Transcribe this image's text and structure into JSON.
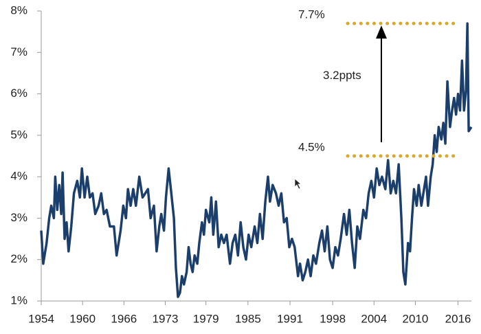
{
  "chart_data": {
    "type": "line",
    "x": [
      1954.0,
      1954.3,
      1954.8,
      1955.2,
      1955.5,
      1955.9,
      1956.1,
      1956.4,
      1956.7,
      1957.0,
      1957.2,
      1957.5,
      1957.8,
      1958.1,
      1958.5,
      1958.9,
      1959.4,
      1959.8,
      1960.1,
      1960.5,
      1960.9,
      1961.3,
      1961.7,
      1962.1,
      1962.6,
      1963.0,
      1963.4,
      1963.8,
      1964.3,
      1964.9,
      1965.3,
      1965.9,
      1966.3,
      1966.7,
      1967.0,
      1967.4,
      1967.8,
      1968.2,
      1968.7,
      1969.2,
      1969.6,
      1970.0,
      1970.4,
      1970.9,
      1971.3,
      1971.7,
      1972.0,
      1972.4,
      1972.7,
      1973.1,
      1973.5,
      1973.9,
      1974.2,
      1974.5,
      1974.8,
      1975.1,
      1975.4,
      1975.8,
      1976.1,
      1976.4,
      1976.7,
      1977.0,
      1977.4,
      1977.7,
      1978.1,
      1978.4,
      1978.7,
      1979.2,
      1979.5,
      1979.8,
      1980.2,
      1980.6,
      1981.0,
      1981.4,
      1981.8,
      1982.3,
      1982.7,
      1983.1,
      1983.5,
      1983.9,
      1984.3,
      1984.7,
      1985.1,
      1985.5,
      1986.0,
      1986.4,
      1986.8,
      1987.2,
      1987.6,
      1988.0,
      1988.3,
      1988.7,
      1989.2,
      1989.6,
      1990.0,
      1990.4,
      1990.8,
      1991.2,
      1991.6,
      1992.0,
      1992.5,
      1992.8,
      1993.2,
      1993.6,
      1994.0,
      1994.4,
      1994.8,
      1995.2,
      1995.7,
      1996.1,
      1996.5,
      1996.9,
      1997.3,
      1997.7,
      1998.1,
      1998.5,
      1998.9,
      1999.4,
      1999.8,
      2000.2,
      2000.6,
      2001.0,
      2001.4,
      2001.8,
      2002.3,
      2002.7,
      2003.1,
      2003.5,
      2003.9,
      2004.3,
      2004.7,
      2005.1,
      2005.6,
      2006.0,
      2006.4,
      2006.8,
      2007.2,
      2007.6,
      2008.0,
      2008.3,
      2008.6,
      2009.0,
      2009.3,
      2009.6,
      2009.9,
      2010.3,
      2010.6,
      2011.0,
      2011.4,
      2011.7,
      2012.0,
      2012.4,
      2012.7,
      2013.0,
      2013.3,
      2013.6,
      2014.0,
      2014.3,
      2014.6,
      2014.9,
      2015.3,
      2015.6,
      2015.9,
      2016.2,
      2016.5,
      2016.8,
      2017.1,
      2017.4,
      2017.7,
      2017.9,
      2018.1,
      2018.5
    ],
    "series": [
      {
        "color": "#1b3f6a",
        "values": [
          2.7,
          1.9,
          2.4,
          3.0,
          3.3,
          3.0,
          4.0,
          3.2,
          3.8,
          3.1,
          4.1,
          2.5,
          2.9,
          2.2,
          2.8,
          3.6,
          3.9,
          3.5,
          4.2,
          3.5,
          4.0,
          3.5,
          3.6,
          3.1,
          3.3,
          3.6,
          3.1,
          3.2,
          2.8,
          2.8,
          2.1,
          2.7,
          3.3,
          3.0,
          3.7,
          3.3,
          3.7,
          3.3,
          4.0,
          3.5,
          3.6,
          3.7,
          3.0,
          3.3,
          2.2,
          2.8,
          3.1,
          2.7,
          3.5,
          4.2,
          3.6,
          3.0,
          1.8,
          1.1,
          1.2,
          1.6,
          1.4,
          1.7,
          2.3,
          1.9,
          1.7,
          2.1,
          1.9,
          2.4,
          2.9,
          2.6,
          3.2,
          2.9,
          3.5,
          2.6,
          3.4,
          2.3,
          2.6,
          2.4,
          2.6,
          1.9,
          2.4,
          2.6,
          2.1,
          2.9,
          2.3,
          2.0,
          2.6,
          2.3,
          2.8,
          2.4,
          3.1,
          2.5,
          3.4,
          4.0,
          3.4,
          3.8,
          3.6,
          3.3,
          3.6,
          2.9,
          3.0,
          2.3,
          2.5,
          2.3,
          1.6,
          1.9,
          1.5,
          1.7,
          2.0,
          1.6,
          2.1,
          1.9,
          2.4,
          2.7,
          2.2,
          2.8,
          2.0,
          1.8,
          2.3,
          2.1,
          2.5,
          3.1,
          2.6,
          3.2,
          2.4,
          1.8,
          2.8,
          2.5,
          3.2,
          3.0,
          3.6,
          3.9,
          3.5,
          4.2,
          3.8,
          4.0,
          3.7,
          4.4,
          3.6,
          3.9,
          3.6,
          4.3,
          3.0,
          1.7,
          1.4,
          2.4,
          2.2,
          3.0,
          3.7,
          3.3,
          3.8,
          3.3,
          3.7,
          4.0,
          3.3,
          4.0,
          4.3,
          5.0,
          4.6,
          5.2,
          4.9,
          5.3,
          4.8,
          6.3,
          5.2,
          5.6,
          5.9,
          5.5,
          6.0,
          5.6,
          6.8,
          5.6,
          6.1,
          7.7,
          5.1,
          5.2
        ]
      }
    ],
    "xlim": [
      1954,
      2018.5
    ],
    "xticks": [
      1954,
      {
        "value": 1960.2,
        "label": "1960"
      },
      {
        "value": 1966.4,
        "label": "1966"
      },
      {
        "value": 1972.6,
        "label": "1973"
      },
      {
        "value": 1978.7,
        "label": "1979"
      },
      {
        "value": 1985.0,
        "label": "1985"
      },
      {
        "value": 1991.3,
        "label": "1991"
      },
      {
        "value": 1997.7,
        "label": "1998"
      },
      {
        "value": 2003.9,
        "label": "2004"
      },
      {
        "value": 2010.1,
        "label": "2010"
      },
      {
        "value": 2016.5,
        "label": "2016"
      }
    ],
    "ylim": [
      1,
      8
    ],
    "yticks": [
      {
        "value": 1,
        "label": "1%"
      },
      {
        "value": 2,
        "label": "2%"
      },
      {
        "value": 3,
        "label": "3%"
      },
      {
        "value": 4,
        "label": "4%"
      },
      {
        "value": 5,
        "label": "5%"
      },
      {
        "value": 6,
        "label": "6%"
      },
      {
        "value": 7,
        "label": "7%"
      },
      {
        "value": 8,
        "label": "8%"
      }
    ],
    "reference_lines": [
      {
        "label": "7.7%",
        "value": 7.7,
        "color": "#d8a92b"
      },
      {
        "label": "4.5%",
        "value": 4.5,
        "color": "#d8a92b"
      }
    ],
    "annotation": "3.2ppts"
  }
}
